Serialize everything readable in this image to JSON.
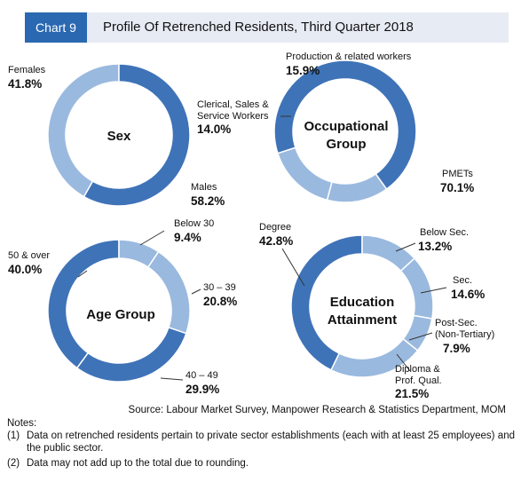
{
  "header": {
    "tag": "Chart 9",
    "title": "Profile Of Retrenched Residents, Third Quarter 2018"
  },
  "colors": {
    "dark": "#3f73b8",
    "light": "#9ab9df",
    "header_bg": "#e7ebf4",
    "tag_bg": "#2a68b1"
  },
  "chart_data": [
    {
      "type": "pie",
      "donut": true,
      "title": "Sex",
      "slices": [
        {
          "label": "Males",
          "value": 58.2,
          "display": "58.2%",
          "color": "#3f73b8"
        },
        {
          "label": "Females",
          "value": 41.8,
          "display": "41.8%",
          "color": "#9ab9df"
        }
      ]
    },
    {
      "type": "pie",
      "donut": true,
      "title": "Occupational Group",
      "slices": [
        {
          "label": "PMETs",
          "value": 70.1,
          "display": "70.1%",
          "color": "#3f73b8"
        },
        {
          "label": "Clerical, Sales & Service Workers",
          "value": 14.0,
          "display": "14.0%",
          "color": "#9ab9df"
        },
        {
          "label": "Production & related workers",
          "value": 15.9,
          "display": "15.9%",
          "color": "#9ab9df"
        }
      ]
    },
    {
      "type": "pie",
      "donut": true,
      "title": "Age Group",
      "slices": [
        {
          "label": "Below 30",
          "value": 9.4,
          "display": "9.4%",
          "color": "#9ab9df"
        },
        {
          "label": "30 – 39",
          "value": 20.8,
          "display": "20.8%",
          "color": "#9ab9df"
        },
        {
          "label": "40 – 49",
          "value": 29.9,
          "display": "29.9%",
          "color": "#3f73b8"
        },
        {
          "label": "50 & over",
          "value": 40.0,
          "display": "40.0%",
          "color": "#3f73b8"
        }
      ]
    },
    {
      "type": "pie",
      "donut": true,
      "title": "Education Attainment",
      "slices": [
        {
          "label": "Below Sec.",
          "value": 13.2,
          "display": "13.2%",
          "color": "#9ab9df"
        },
        {
          "label": "Sec.",
          "value": 14.6,
          "display": "14.6%",
          "color": "#9ab9df"
        },
        {
          "label": "Post-Sec. (Non-Tertiary)",
          "value": 7.9,
          "display": "7.9%",
          "color": "#9ab9df"
        },
        {
          "label": "Diploma & Prof. Qual.",
          "value": 21.5,
          "display": "21.5%",
          "color": "#9ab9df"
        },
        {
          "label": "Degree",
          "value": 42.8,
          "display": "42.8%",
          "color": "#3f73b8"
        }
      ]
    }
  ],
  "labels": {
    "sex": {
      "center": "Sex",
      "females": "Females",
      "females_pct": "41.8%",
      "males": "Males",
      "males_pct": "58.2%"
    },
    "occ": {
      "center1": "Occupational",
      "center2": "Group",
      "prod": "Production & related workers",
      "prod_pct": "15.9%",
      "cler1": "Clerical, Sales &",
      "cler2": "Service Workers",
      "cler_pct": "14.0%",
      "pmets": "PMETs",
      "pmets_pct": "70.1%"
    },
    "age": {
      "center": "Age Group",
      "b30": "Below 30",
      "b30_pct": "9.4%",
      "a30": "30 – 39",
      "a30_pct": "20.8%",
      "a40": "40 – 49",
      "a40_pct": "29.9%",
      "a50": "50 & over",
      "a50_pct": "40.0%"
    },
    "edu": {
      "center1": "Education",
      "center2": "Attainment",
      "below": "Below Sec.",
      "below_pct": "13.2%",
      "sec": "Sec.",
      "sec_pct": "14.6%",
      "post1": "Post-Sec.",
      "post2": "(Non-Tertiary)",
      "post_pct": "7.9%",
      "dip1": "Diploma &",
      "dip2": "Prof. Qual.",
      "dip_pct": "21.5%",
      "degree": "Degree",
      "degree_pct": "42.8%"
    }
  },
  "source": "Source: Labour Market Survey, Manpower Research & Statistics Department, MOM",
  "notes": {
    "heading": "Notes:",
    "n1_num": "(1)",
    "n1": "Data on retrenched residents pertain to private sector establishments (each with at least 25 employees) and the public sector.",
    "n2_num": "(2)",
    "n2": "Data may not add up to the total due to rounding."
  }
}
